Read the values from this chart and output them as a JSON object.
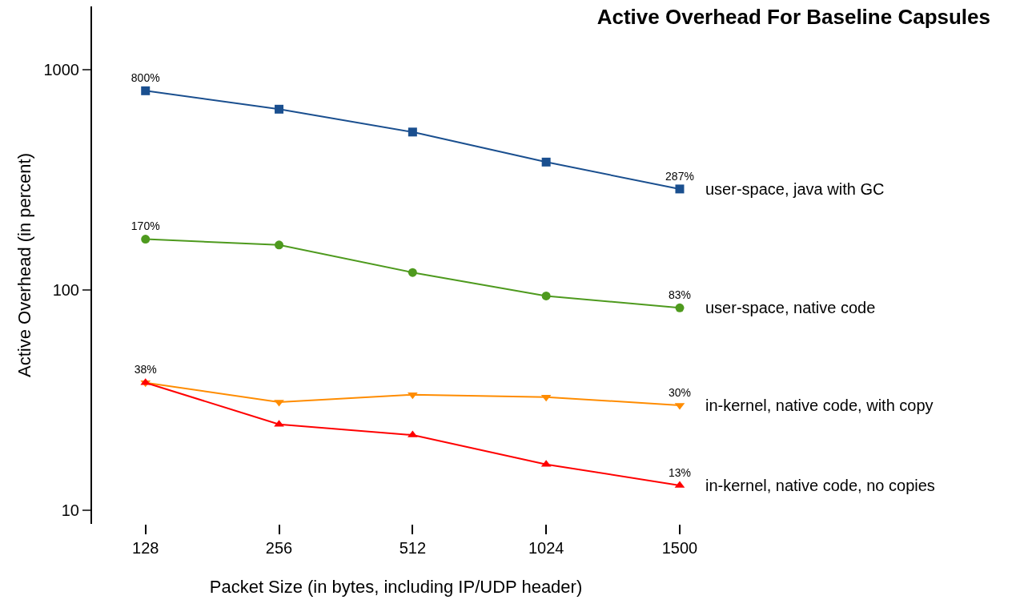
{
  "chart_data": {
    "type": "line",
    "title": "Active Overhead For Baseline Capsules",
    "xlabel": "Packet Size (in bytes, including IP/UDP header)",
    "ylabel": "Active Overhead (in percent)",
    "categories": [
      "128",
      "256",
      "512",
      "1024",
      "1500"
    ],
    "log": true,
    "ylim": [
      8.7,
      1930
    ],
    "yticks": [
      10,
      100,
      1000
    ],
    "legend": false,
    "series": [
      {
        "name": "user-space, java with GC",
        "color": "#1a4f8f",
        "marker": "square",
        "values": [
          800,
          660,
          520,
          380,
          287
        ],
        "value_labels": [
          "800%",
          null,
          null,
          null,
          "287%"
        ]
      },
      {
        "name": "user-space, native code",
        "color": "#4e9a1e",
        "marker": "circle",
        "values": [
          170,
          160,
          120,
          94,
          83
        ],
        "value_labels": [
          "170%",
          null,
          null,
          null,
          "83%"
        ]
      },
      {
        "name": "in-kernel, native code, with copy",
        "color": "#ff8c00",
        "marker": "triangle-down",
        "values": [
          38,
          31,
          33.5,
          32.7,
          30
        ],
        "value_labels": [
          "38%",
          null,
          null,
          null,
          "30%"
        ]
      },
      {
        "name": "in-kernel, native code, no copies",
        "color": "#ff0000",
        "marker": "triangle",
        "values": [
          38,
          24.6,
          22,
          16.2,
          13
        ],
        "value_labels": [
          null,
          null,
          null,
          null,
          "13%"
        ]
      }
    ]
  }
}
